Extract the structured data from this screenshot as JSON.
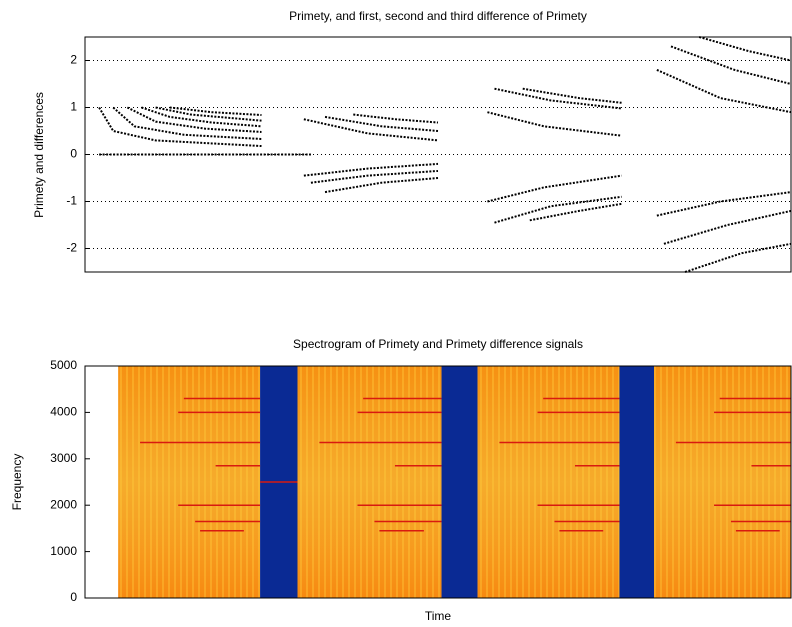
{
  "chart_data": [
    {
      "type": "line",
      "title": "Primety, and first, second and third difference of Primety",
      "ylabel": "Primety and differences",
      "xlim": [
        0,
        100
      ],
      "ylim": [
        -2.5,
        2.5
      ],
      "yticks": [
        -2,
        -1,
        0,
        1,
        2
      ],
      "grid": true,
      "series": [
        {
          "color": "#000000",
          "x": [
            2,
            4,
            10,
            25
          ],
          "values": [
            1,
            0.5,
            0.3,
            0.18
          ]
        },
        {
          "color": "#000000",
          "x": [
            4,
            7,
            14,
            25
          ],
          "values": [
            1,
            0.6,
            0.42,
            0.33
          ]
        },
        {
          "color": "#000000",
          "x": [
            6,
            10,
            17,
            25
          ],
          "values": [
            1,
            0.7,
            0.55,
            0.48
          ]
        },
        {
          "color": "#000000",
          "x": [
            8,
            12,
            18,
            25
          ],
          "values": [
            1,
            0.8,
            0.68,
            0.6
          ]
        },
        {
          "color": "#000000",
          "x": [
            10,
            15,
            25
          ],
          "values": [
            1,
            0.85,
            0.72
          ]
        },
        {
          "color": "#000000",
          "x": [
            12,
            18,
            25
          ],
          "values": [
            1,
            0.9,
            0.84
          ]
        },
        {
          "color": "#000000",
          "x": [
            2,
            32
          ],
          "values": [
            0,
            0
          ]
        },
        {
          "color": "#000000",
          "x": [
            31,
            40,
            50
          ],
          "values": [
            0.75,
            0.45,
            0.3
          ]
        },
        {
          "color": "#000000",
          "x": [
            34,
            42,
            50
          ],
          "values": [
            0.8,
            0.6,
            0.5
          ]
        },
        {
          "color": "#000000",
          "x": [
            38,
            44,
            50
          ],
          "values": [
            0.85,
            0.75,
            0.68
          ]
        },
        {
          "color": "#000000",
          "x": [
            31,
            40,
            50
          ],
          "values": [
            -0.45,
            -0.3,
            -0.2
          ]
        },
        {
          "color": "#000000",
          "x": [
            32,
            40,
            50
          ],
          "values": [
            -0.6,
            -0.45,
            -0.35
          ]
        },
        {
          "color": "#000000",
          "x": [
            34,
            42,
            50
          ],
          "values": [
            -0.8,
            -0.6,
            -0.5
          ]
        },
        {
          "color": "#000000",
          "x": [
            58,
            66,
            76
          ],
          "values": [
            1.4,
            1.15,
            0.98
          ]
        },
        {
          "color": "#000000",
          "x": [
            62,
            70,
            76
          ],
          "values": [
            1.4,
            1.2,
            1.1
          ]
        },
        {
          "color": "#000000",
          "x": [
            57,
            65,
            76
          ],
          "values": [
            0.9,
            0.6,
            0.4
          ]
        },
        {
          "color": "#000000",
          "x": [
            57,
            65,
            76
          ],
          "values": [
            -1,
            -0.7,
            -0.45
          ]
        },
        {
          "color": "#000000",
          "x": [
            58,
            66,
            76
          ],
          "values": [
            -1.45,
            -1.1,
            -0.9
          ]
        },
        {
          "color": "#000000",
          "x": [
            63,
            70,
            76
          ],
          "values": [
            -1.4,
            -1.2,
            -1.05
          ]
        },
        {
          "color": "#000000",
          "x": [
            81,
            90,
            100
          ],
          "values": [
            1.8,
            1.2,
            0.9
          ]
        },
        {
          "color": "#000000",
          "x": [
            83,
            92,
            100
          ],
          "values": [
            2.3,
            1.8,
            1.5
          ]
        },
        {
          "color": "#000000",
          "x": [
            87,
            94,
            100
          ],
          "values": [
            2.5,
            2.2,
            2
          ]
        },
        {
          "color": "#000000",
          "x": [
            81,
            90,
            100
          ],
          "values": [
            -1.3,
            -1,
            -0.8
          ]
        },
        {
          "color": "#000000",
          "x": [
            82,
            91,
            100
          ],
          "values": [
            -1.9,
            -1.5,
            -1.2
          ]
        },
        {
          "color": "#000000",
          "x": [
            85,
            93,
            100
          ],
          "values": [
            -2.5,
            -2.1,
            -1.9
          ]
        }
      ]
    },
    {
      "type": "spectrogram",
      "title": "Spectrogram of Primety and Primety difference signals",
      "xlabel": "Time",
      "ylabel": "Frequency",
      "xlim": [
        0,
        100
      ],
      "ylim": [
        0,
        5000
      ],
      "yticks": [
        0,
        1000,
        2000,
        3000,
        4000,
        5000
      ],
      "panels": [
        {
          "x": [
            4.7,
            24.8
          ],
          "color": "#f39a1a"
        },
        {
          "x": [
            24.8,
            30.1
          ],
          "color": "#0a2a94"
        },
        {
          "x": [
            30.1,
            50.5
          ],
          "color": "#f39a1a"
        },
        {
          "x": [
            50.5,
            55.6
          ],
          "color": "#0a2a94"
        },
        {
          "x": [
            55.6,
            75.7
          ],
          "color": "#f39a1a"
        },
        {
          "x": [
            75.7,
            80.6
          ],
          "color": "#0a2a94"
        },
        {
          "x": [
            80.6,
            100
          ],
          "color": "#f39a1a"
        }
      ],
      "line_color": "#d81a10",
      "lines": [
        {
          "y": 4300,
          "x": [
            14,
            24.8
          ]
        },
        {
          "y": 4000,
          "x": [
            13.2,
            24.8
          ]
        },
        {
          "y": 3350,
          "x": [
            7.8,
            24.8
          ]
        },
        {
          "y": 2850,
          "x": [
            18.5,
            24.8
          ]
        },
        {
          "y": 2000,
          "x": [
            13.2,
            24.8
          ]
        },
        {
          "y": 1650,
          "x": [
            15.6,
            24.8
          ]
        },
        {
          "y": 1450,
          "x": [
            16.3,
            22.5
          ]
        },
        {
          "y": 2500,
          "x": [
            24.8,
            30.1
          ]
        },
        {
          "y": 4300,
          "x": [
            39.4,
            50.5
          ]
        },
        {
          "y": 4000,
          "x": [
            38.6,
            50.5
          ]
        },
        {
          "y": 3350,
          "x": [
            33.2,
            50.5
          ]
        },
        {
          "y": 2850,
          "x": [
            43.9,
            50.5
          ]
        },
        {
          "y": 2000,
          "x": [
            38.6,
            50.5
          ]
        },
        {
          "y": 1650,
          "x": [
            41,
            50.5
          ]
        },
        {
          "y": 1450,
          "x": [
            41.7,
            48
          ]
        },
        {
          "y": 4300,
          "x": [
            64.9,
            75.7
          ]
        },
        {
          "y": 4000,
          "x": [
            64.1,
            75.7
          ]
        },
        {
          "y": 3350,
          "x": [
            58.7,
            75.7
          ]
        },
        {
          "y": 2850,
          "x": [
            69.4,
            75.7
          ]
        },
        {
          "y": 2000,
          "x": [
            64.1,
            75.7
          ]
        },
        {
          "y": 1650,
          "x": [
            66.5,
            75.7
          ]
        },
        {
          "y": 1450,
          "x": [
            67.2,
            73.4
          ]
        },
        {
          "y": 4300,
          "x": [
            89.9,
            100
          ]
        },
        {
          "y": 4000,
          "x": [
            89.1,
            100
          ]
        },
        {
          "y": 3350,
          "x": [
            83.7,
            100
          ]
        },
        {
          "y": 2850,
          "x": [
            94.4,
            100
          ]
        },
        {
          "y": 2000,
          "x": [
            89.1,
            100
          ]
        },
        {
          "y": 1650,
          "x": [
            91.5,
            100
          ]
        },
        {
          "y": 1450,
          "x": [
            92.2,
            98.4
          ]
        }
      ]
    }
  ]
}
